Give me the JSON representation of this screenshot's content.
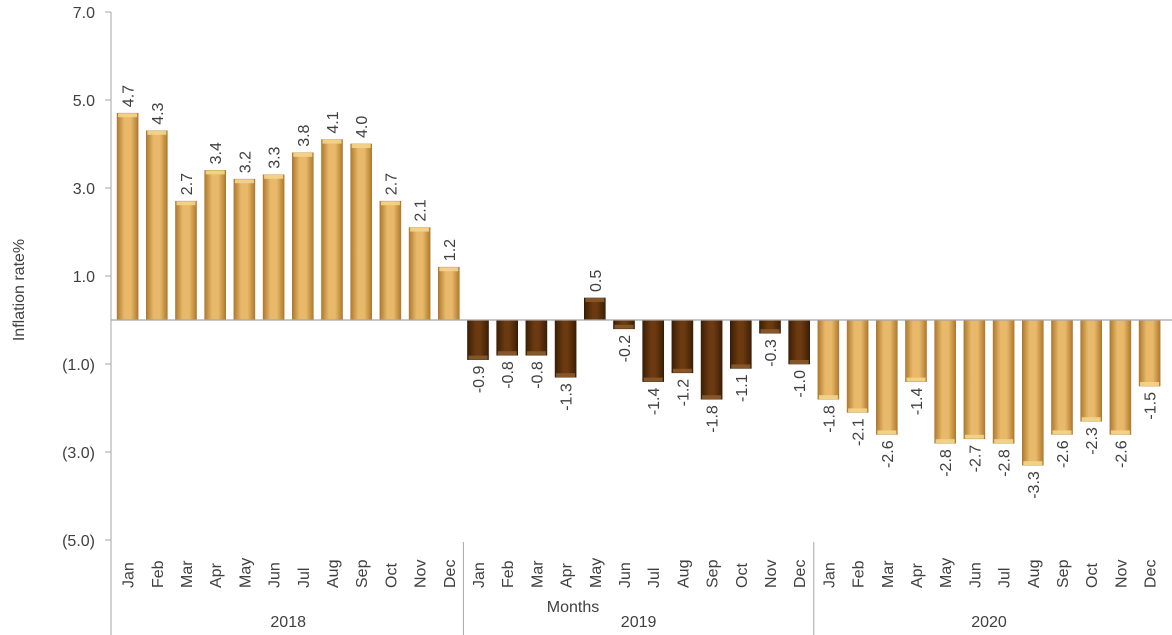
{
  "chart_data": {
    "type": "bar",
    "ylabel": "Inflation rate%",
    "xlabel": "Months",
    "ylim": [
      -6,
      7
    ],
    "y_ticks": [
      {
        "value": 7,
        "label": "7.0"
      },
      {
        "value": 5,
        "label": "5.0"
      },
      {
        "value": 3,
        "label": "3.0"
      },
      {
        "value": 1,
        "label": "1.0"
      },
      {
        "value": -1,
        "label": "(1.0)"
      },
      {
        "value": -3,
        "label": "(3.0)"
      },
      {
        "value": -5,
        "label": "(5.0)"
      }
    ],
    "groups": [
      {
        "year": "2018",
        "categories": [
          "Jan",
          "Feb",
          "Mar",
          "Apr",
          "May",
          "Jun",
          "Jul",
          "Aug",
          "Sep",
          "Oct",
          "Nov",
          "Dec"
        ],
        "values": [
          4.7,
          4.3,
          2.7,
          3.4,
          3.2,
          3.3,
          3.8,
          4.1,
          4.0,
          2.7,
          2.1,
          1.2
        ],
        "labels": [
          "4.7",
          "4.3",
          "2.7",
          "3.4",
          "3.2",
          "3.3",
          "3.8",
          "4.1",
          "4.0",
          "2.7",
          "2.1",
          "1.2"
        ],
        "color": "#d9a55a"
      },
      {
        "year": "2019",
        "categories": [
          "Jan",
          "Feb",
          "Mar",
          "Apr",
          "May",
          "Jun",
          "Jul",
          "Aug",
          "Sep",
          "Oct",
          "Nov",
          "Dec"
        ],
        "values": [
          -0.9,
          -0.8,
          -0.8,
          -1.3,
          0.5,
          -0.2,
          -1.4,
          -1.2,
          -1.8,
          -1.1,
          -0.3,
          -1.0
        ],
        "labels": [
          "-0.9",
          "-0.8",
          "-0.8",
          "-1.3",
          "0.5",
          "-0.2",
          "-1.4",
          "-1.2",
          "-1.8",
          "-1.1",
          "-0.3",
          "-1.0"
        ],
        "color": "#6b3a10"
      },
      {
        "year": "2020",
        "categories": [
          "Jan",
          "Feb",
          "Mar",
          "Apr",
          "May",
          "Jun",
          "Jul",
          "Aug",
          "Sep",
          "Oct",
          "Nov",
          "Dec"
        ],
        "values": [
          -1.8,
          -2.1,
          -2.6,
          -1.4,
          -2.8,
          -2.7,
          -2.8,
          -3.3,
          -2.6,
          -2.3,
          -2.6,
          -1.5
        ],
        "labels": [
          "-1.8",
          "-2.1",
          "-2.6",
          "-1.4",
          "-2.8",
          "-2.7",
          "-2.8",
          "-3.3",
          "-2.6",
          "-2.3",
          "-2.6",
          "-1.5"
        ],
        "color": "#d9a55a"
      }
    ]
  }
}
